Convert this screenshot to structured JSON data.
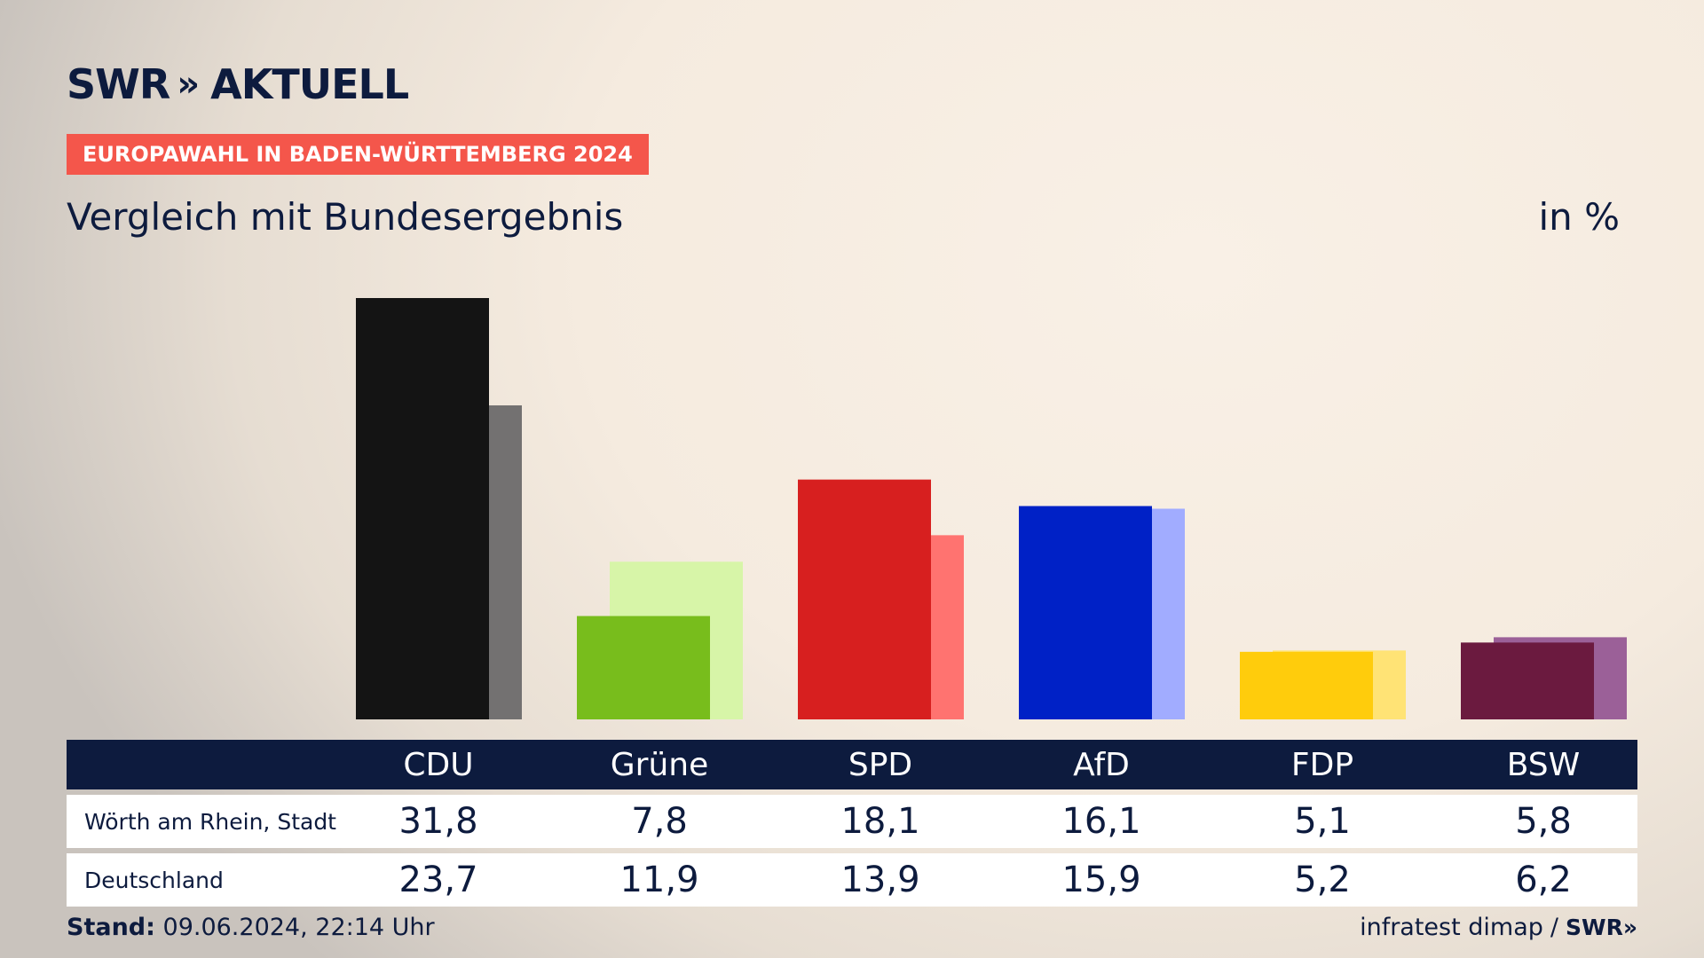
{
  "brand": {
    "logo_text": "SWR",
    "logo_chevrons": "»",
    "logo_suffix": "AKTUELL"
  },
  "header": {
    "badge": "EUROPAWAHL IN BADEN-WÜRTTEMBERG 2024",
    "title": "Vergleich mit Bundesergebnis",
    "unit": "in %"
  },
  "chart_data": {
    "type": "bar",
    "categories": [
      "CDU",
      "Grüne",
      "SPD",
      "AfD",
      "FDP",
      "BSW"
    ],
    "series": [
      {
        "name": "Wörth am Rhein, Stadt",
        "values": [
          31.8,
          7.8,
          18.1,
          16.1,
          5.1,
          5.8
        ],
        "colors": [
          "#141414",
          "#78bd1c",
          "#d71f1f",
          "#0021c6",
          "#ffcc0c",
          "#6b1a3f"
        ]
      },
      {
        "name": "Deutschland",
        "values": [
          23.7,
          11.9,
          13.9,
          15.9,
          5.2,
          6.2
        ],
        "colors": [
          "#737171",
          "#d7f5a8",
          "#ff7370",
          "#a1acff",
          "#ffe375",
          "#9b6098"
        ]
      }
    ],
    "table_values": {
      "local": [
        "31,8",
        "7,8",
        "18,1",
        "16,1",
        "5,1",
        "5,8"
      ],
      "national": [
        "23,7",
        "11,9",
        "13,9",
        "15,9",
        "5,2",
        "6,2"
      ]
    },
    "ylim": [
      0,
      31.8
    ]
  },
  "footer": {
    "stand_label": "Stand:",
    "stand_value": "09.06.2024, 22:14 Uhr",
    "source": "infratest dimap",
    "separator": "/",
    "source_logo": "SWR»"
  }
}
